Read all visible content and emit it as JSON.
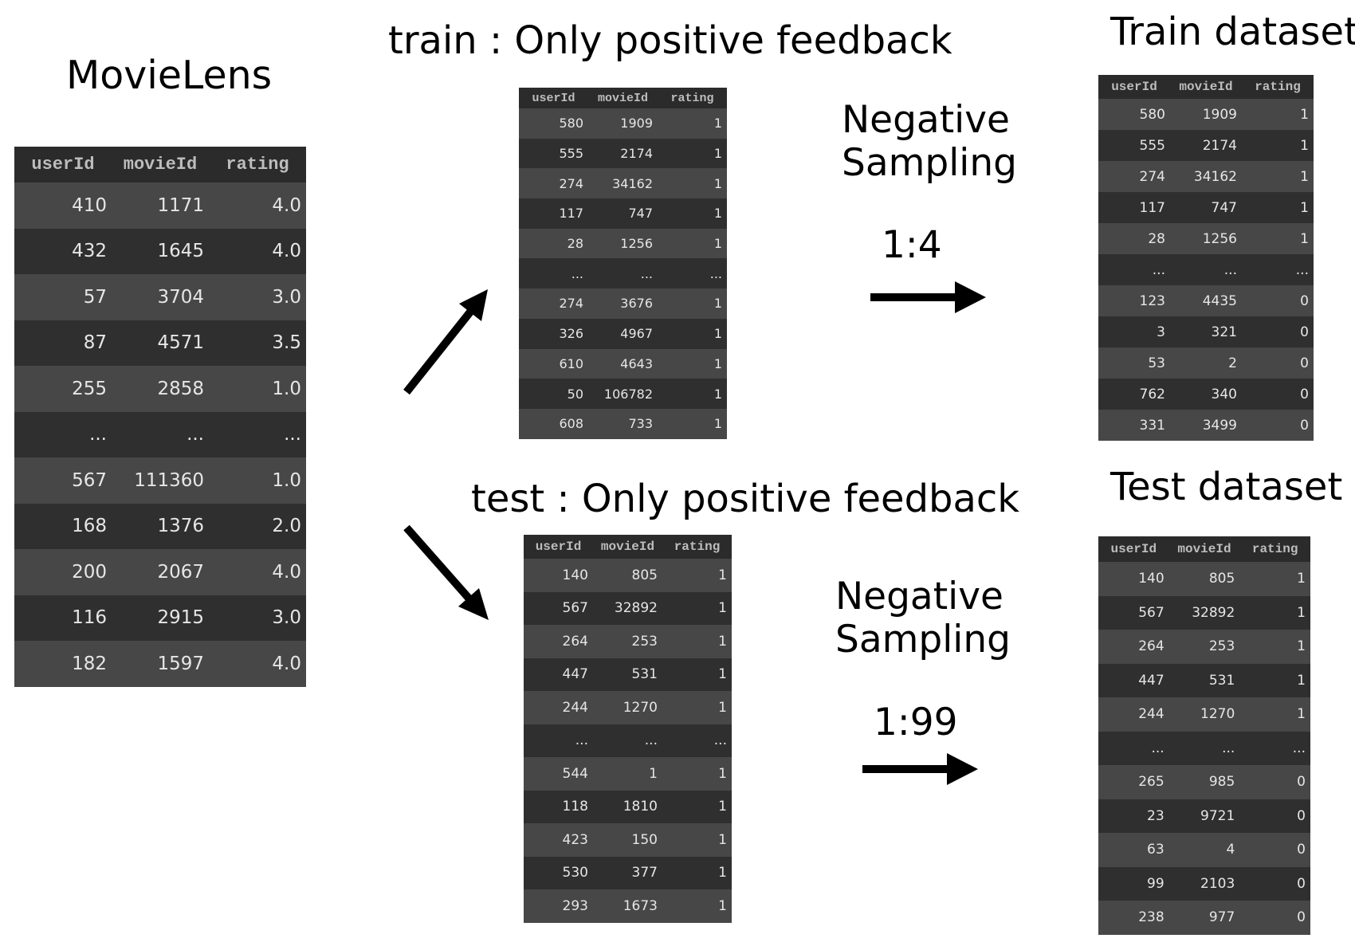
{
  "titles": {
    "movielens": "MovieLens",
    "train_split": "train : Only positive feedback",
    "test_split": "test : Only positive feedback",
    "train_dataset": "Train dataset",
    "test_dataset": "Test dataset"
  },
  "sampling": {
    "train": {
      "label_line1": "Negative",
      "label_line2": "Sampling",
      "ratio": "1:4"
    },
    "test": {
      "label_line1": "Negative",
      "label_line2": "Sampling",
      "ratio": "1:99"
    }
  },
  "tables": {
    "movielens": {
      "columns": [
        "userId",
        "movieId",
        "rating"
      ],
      "rows": [
        [
          "410",
          "1171",
          "4.0"
        ],
        [
          "432",
          "1645",
          "4.0"
        ],
        [
          "57",
          "3704",
          "3.0"
        ],
        [
          "87",
          "4571",
          "3.5"
        ],
        [
          "255",
          "2858",
          "1.0"
        ],
        [
          "...",
          "...",
          "..."
        ],
        [
          "567",
          "111360",
          "1.0"
        ],
        [
          "168",
          "1376",
          "2.0"
        ],
        [
          "200",
          "2067",
          "4.0"
        ],
        [
          "116",
          "2915",
          "3.0"
        ],
        [
          "182",
          "1597",
          "4.0"
        ]
      ]
    },
    "train_positive": {
      "columns": [
        "userId",
        "movieId",
        "rating"
      ],
      "rows": [
        [
          "580",
          "1909",
          "1"
        ],
        [
          "555",
          "2174",
          "1"
        ],
        [
          "274",
          "34162",
          "1"
        ],
        [
          "117",
          "747",
          "1"
        ],
        [
          "28",
          "1256",
          "1"
        ],
        [
          "...",
          "...",
          "..."
        ],
        [
          "274",
          "3676",
          "1"
        ],
        [
          "326",
          "4967",
          "1"
        ],
        [
          "610",
          "4643",
          "1"
        ],
        [
          "50",
          "106782",
          "1"
        ],
        [
          "608",
          "733",
          "1"
        ]
      ]
    },
    "test_positive": {
      "columns": [
        "userId",
        "movieId",
        "rating"
      ],
      "rows": [
        [
          "140",
          "805",
          "1"
        ],
        [
          "567",
          "32892",
          "1"
        ],
        [
          "264",
          "253",
          "1"
        ],
        [
          "447",
          "531",
          "1"
        ],
        [
          "244",
          "1270",
          "1"
        ],
        [
          "...",
          "...",
          "..."
        ],
        [
          "544",
          "1",
          "1"
        ],
        [
          "118",
          "1810",
          "1"
        ],
        [
          "423",
          "150",
          "1"
        ],
        [
          "530",
          "377",
          "1"
        ],
        [
          "293",
          "1673",
          "1"
        ]
      ]
    },
    "train_dataset": {
      "columns": [
        "userId",
        "movieId",
        "rating"
      ],
      "rows": [
        [
          "580",
          "1909",
          "1"
        ],
        [
          "555",
          "2174",
          "1"
        ],
        [
          "274",
          "34162",
          "1"
        ],
        [
          "117",
          "747",
          "1"
        ],
        [
          "28",
          "1256",
          "1"
        ],
        [
          "...",
          "...",
          "..."
        ],
        [
          "123",
          "4435",
          "0"
        ],
        [
          "3",
          "321",
          "0"
        ],
        [
          "53",
          "2",
          "0"
        ],
        [
          "762",
          "340",
          "0"
        ],
        [
          "331",
          "3499",
          "0"
        ]
      ]
    },
    "test_dataset": {
      "columns": [
        "userId",
        "movieId",
        "rating"
      ],
      "rows": [
        [
          "140",
          "805",
          "1"
        ],
        [
          "567",
          "32892",
          "1"
        ],
        [
          "264",
          "253",
          "1"
        ],
        [
          "447",
          "531",
          "1"
        ],
        [
          "244",
          "1270",
          "1"
        ],
        [
          "...",
          "...",
          "..."
        ],
        [
          "265",
          "985",
          "0"
        ],
        [
          "23",
          "9721",
          "0"
        ],
        [
          "63",
          "4",
          "0"
        ],
        [
          "99",
          "2103",
          "0"
        ],
        [
          "238",
          "977",
          "0"
        ]
      ]
    }
  }
}
